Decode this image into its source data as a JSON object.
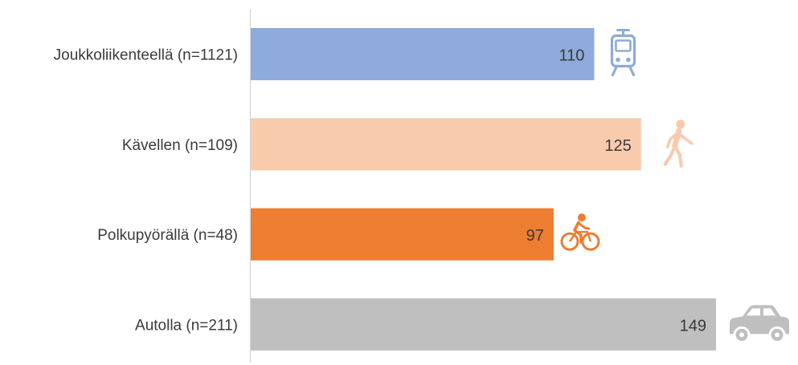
{
  "chart_data": {
    "type": "bar",
    "orientation": "horizontal",
    "categories": [
      "Joukkoliikenteellä (n=1121)",
      "Kävellen (n=109)",
      "Polkupyörällä (n=48)",
      "Autolla (n=211)"
    ],
    "values": [
      110,
      125,
      97,
      149
    ],
    "colors": [
      "#8faadc",
      "#f8cbad",
      "#ed7d31",
      "#bfbfbf"
    ],
    "icons": [
      "tram-icon",
      "pedestrian-icon",
      "bicycle-icon",
      "car-icon"
    ],
    "title": "",
    "xlabel": "",
    "ylabel": "",
    "xlim": [
      0,
      149
    ],
    "grid": false,
    "legend": "none",
    "data_labels": true
  }
}
